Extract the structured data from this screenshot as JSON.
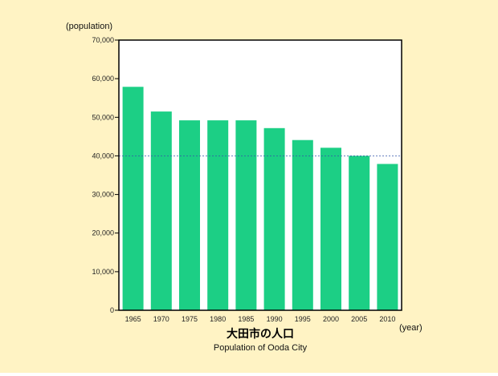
{
  "colors": {
    "background": "#FFF3C4",
    "plot_background": "#FFFFFF",
    "bar": "#1CCF85",
    "reference_line": "#3355AA"
  },
  "chart_data": {
    "type": "bar",
    "title": "大田市の人口",
    "subtitle": "Population of Ooda City",
    "ylabel": "(population)",
    "xlabel": "(year)",
    "categories": [
      "1965",
      "1970",
      "1975",
      "1980",
      "1985",
      "1990",
      "1995",
      "2000",
      "2005",
      "2010"
    ],
    "values": [
      57900,
      51500,
      49200,
      49200,
      49200,
      47200,
      44100,
      42100,
      40000,
      37900
    ],
    "ylim": [
      0,
      70000
    ],
    "yticks": [
      0,
      10000,
      20000,
      30000,
      40000,
      50000,
      60000,
      70000
    ],
    "ytick_labels": [
      "0",
      "10,000",
      "20,000",
      "30,000",
      "40,000",
      "50,000",
      "60,000",
      "70,000"
    ],
    "reference_line": {
      "value": 40000,
      "style": "dashed"
    },
    "grid": false,
    "legend": "none"
  }
}
